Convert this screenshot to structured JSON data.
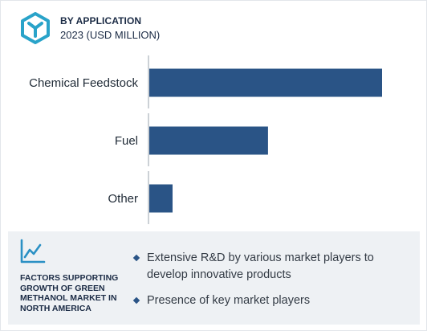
{
  "header": {
    "title": "BY APPLICATION",
    "subtitle": "2023 (USD MILLION)",
    "icon": "cube-logo-icon"
  },
  "colors": {
    "bar": "#2a5486",
    "logo": "#29a3c9",
    "accent_icon": "#2a90c4",
    "text": "#1b2b45",
    "footer_bg": "#eef1f4"
  },
  "chart_data": {
    "type": "bar",
    "orientation": "horizontal",
    "categories": [
      "Chemical Feedstock",
      "Fuel",
      "Other"
    ],
    "values": [
      100,
      51,
      10
    ],
    "grid": false,
    "value_axis_shown": false
  },
  "footer": {
    "icon": "trend-line-icon",
    "title": "FACTORS SUPPORTING GROWTH OF GREEN METHANOL MARKET IN NORTH AMERICA",
    "bullets": [
      "Extensive R&D by various market players to develop innovative products",
      "Presence of key market players"
    ]
  }
}
